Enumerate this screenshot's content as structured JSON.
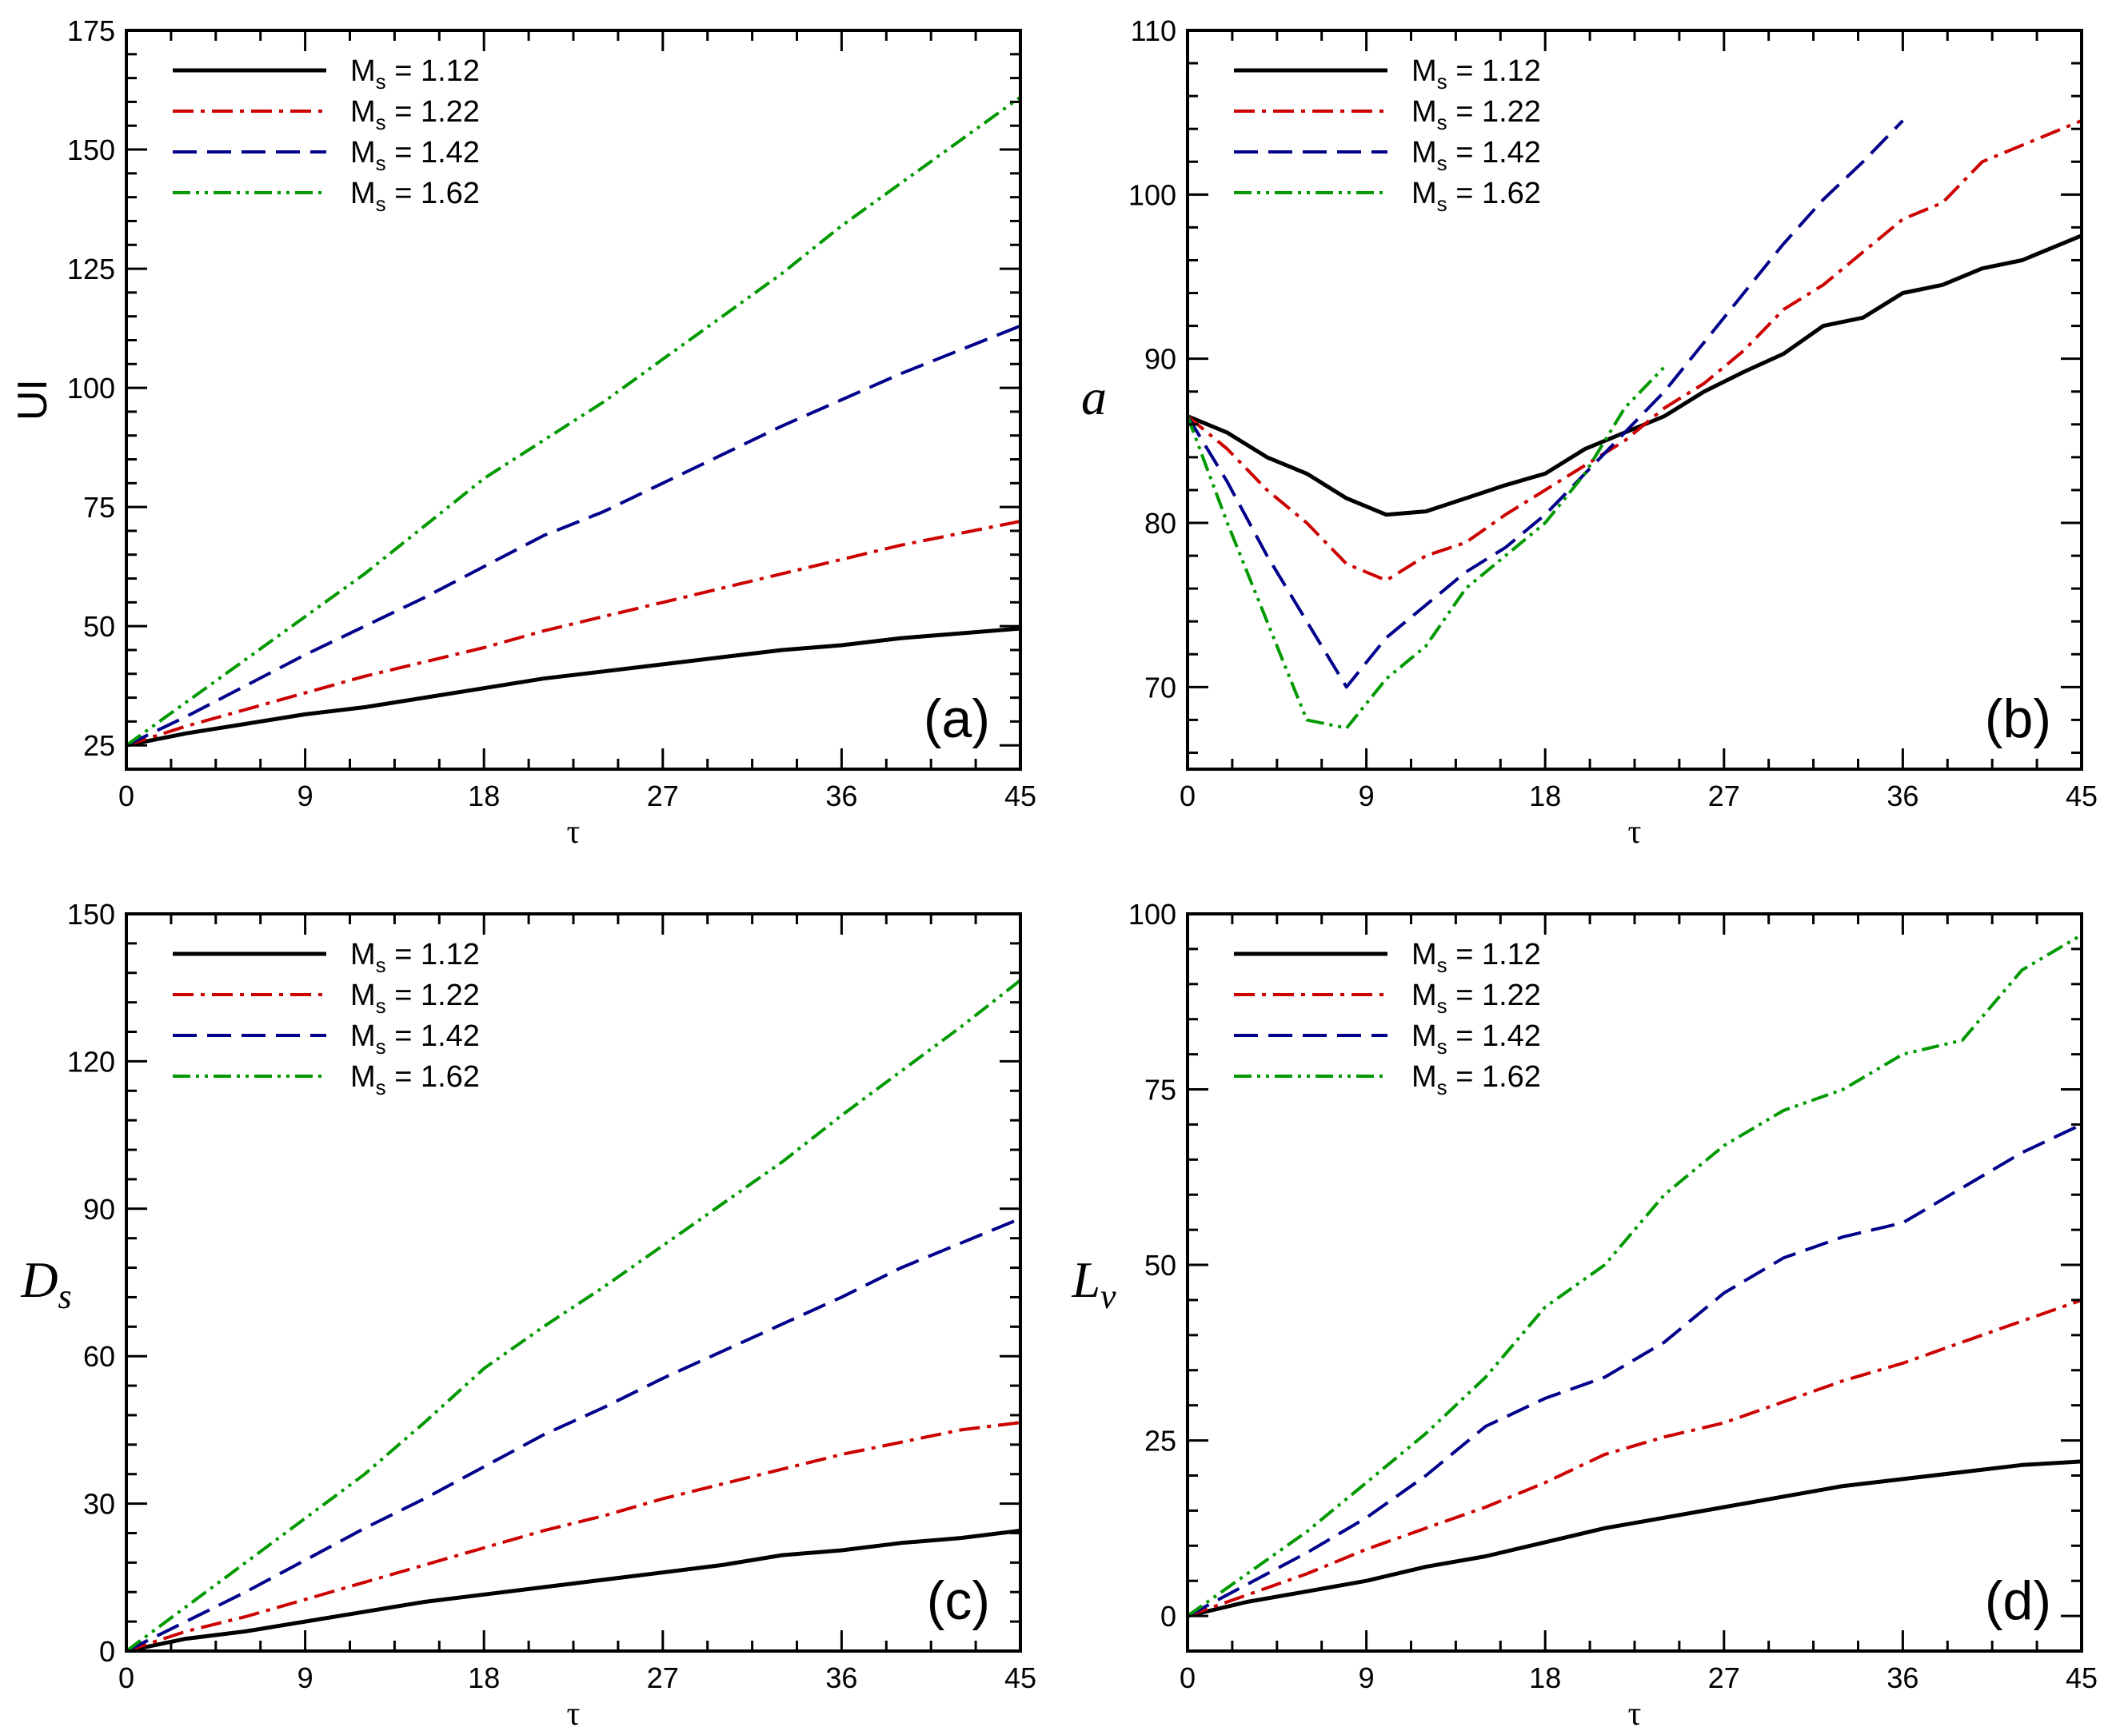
{
  "chart_data": [
    {
      "type": "line",
      "panel_label": "(a)",
      "xlabel": "τ",
      "ylabel": "UI",
      "xlim": [
        0,
        45
      ],
      "ylim": [
        20,
        175
      ],
      "xticks": [
        "0",
        "9",
        "18",
        "27",
        "36",
        "45"
      ],
      "xtick_values": [
        0,
        9,
        18,
        27,
        36,
        45
      ],
      "yticks": [
        "25",
        "50",
        "75",
        "100",
        "125",
        "150",
        "175"
      ],
      "ytick_values": [
        25,
        50,
        75,
        100,
        125,
        150,
        175
      ],
      "legend_position": "top-left",
      "series": [
        {
          "name": "M_s = 1.12",
          "style": "solid",
          "color": "#000000",
          "x": [
            0,
            3,
            6,
            9,
            12,
            15,
            18,
            21,
            24,
            27,
            30,
            33,
            36,
            39,
            42,
            45
          ],
          "y": [
            25,
            27.5,
            29.5,
            31.5,
            33,
            35,
            37,
            39,
            40.5,
            42,
            43.5,
            45,
            46,
            47.5,
            48.5,
            49.5
          ]
        },
        {
          "name": "M_s = 1.22",
          "style": "dashdot",
          "color": "#cc0000",
          "x": [
            0,
            3,
            6,
            9,
            12,
            15,
            18,
            21,
            24,
            27,
            30,
            33,
            36,
            39,
            42,
            45
          ],
          "y": [
            25,
            29,
            32.5,
            36,
            39.5,
            42.5,
            45.5,
            49,
            52,
            55,
            58,
            61,
            64,
            67,
            69.5,
            72
          ]
        },
        {
          "name": "M_s = 1.42",
          "style": "dashed",
          "color": "#00008b",
          "x": [
            0,
            3,
            6,
            9,
            12,
            15,
            18,
            21,
            24,
            27,
            30,
            33,
            36,
            39,
            42,
            45
          ],
          "y": [
            25,
            31,
            37.5,
            44,
            50,
            56,
            62.5,
            69,
            74,
            80,
            86,
            92,
            97.5,
            103,
            108,
            113
          ]
        },
        {
          "name": "M_s = 1.62",
          "style": "dashdotdot",
          "color": "#009900",
          "x": [
            0,
            3,
            6,
            9,
            12,
            15,
            18,
            21,
            24,
            27,
            30,
            33,
            36,
            39,
            42,
            45
          ],
          "y": [
            25,
            34,
            43,
            52,
            61,
            71,
            81,
            89,
            97,
            106,
            115,
            124,
            134,
            143,
            152,
            161
          ]
        }
      ]
    },
    {
      "type": "line",
      "panel_label": "(b)",
      "xlabel": "τ",
      "ylabel": "a",
      "xlim": [
        0,
        45
      ],
      "ylim": [
        65,
        110
      ],
      "xticks": [
        "0",
        "9",
        "18",
        "27",
        "36",
        "45"
      ],
      "xtick_values": [
        0,
        9,
        18,
        27,
        36,
        45
      ],
      "yticks": [
        "70",
        "80",
        "90",
        "100",
        "110"
      ],
      "ytick_values": [
        70,
        80,
        90,
        100,
        110
      ],
      "legend_position": "top-left",
      "series": [
        {
          "name": "M_s = 1.12",
          "style": "solid",
          "color": "#000000",
          "x": [
            0,
            2,
            4,
            6,
            8,
            10,
            12,
            14,
            16,
            18,
            20,
            22,
            24,
            26,
            28,
            30,
            32,
            34,
            36,
            38,
            40,
            42,
            45
          ],
          "y": [
            86.5,
            85.5,
            84,
            83,
            81.5,
            80.5,
            80.7,
            81.5,
            82.3,
            83,
            84.5,
            85.5,
            86.5,
            88,
            89.2,
            90.3,
            92,
            92.5,
            94,
            94.5,
            95.5,
            96,
            97.5
          ]
        },
        {
          "name": "M_s = 1.22",
          "style": "dashdot",
          "color": "#cc0000",
          "x": [
            0,
            2,
            4,
            6,
            8,
            10,
            12,
            14,
            16,
            18,
            20,
            22,
            24,
            26,
            28,
            30,
            32,
            34,
            36,
            38,
            40,
            42,
            45
          ],
          "y": [
            86.5,
            84.5,
            82,
            80,
            77.5,
            76.5,
            78,
            78.8,
            80.5,
            82,
            83.5,
            85,
            87,
            88.5,
            90.5,
            93,
            94.5,
            96.5,
            98.5,
            99.5,
            102,
            103,
            104.5
          ]
        },
        {
          "name": "M_s = 1.42",
          "style": "dashed",
          "color": "#00008b",
          "x": [
            0,
            2,
            4,
            6,
            8,
            10,
            12,
            14,
            16,
            18,
            20,
            22,
            24,
            26,
            28,
            30,
            32,
            34,
            36
          ],
          "y": [
            86.5,
            82.5,
            78,
            74,
            70,
            73,
            75,
            77,
            78.5,
            80.5,
            83,
            85.5,
            88,
            91,
            94,
            97,
            99.7,
            102,
            104.5
          ]
        },
        {
          "name": "M_s = 1.62",
          "style": "dashdotdot",
          "color": "#009900",
          "x": [
            0,
            2,
            4,
            6,
            8,
            10,
            12,
            14,
            16,
            18,
            20,
            22,
            24
          ],
          "y": [
            86.5,
            80,
            74,
            68,
            67.5,
            70.5,
            72.5,
            76,
            78,
            80,
            83,
            87,
            89.5
          ]
        }
      ]
    },
    {
      "type": "line",
      "panel_label": "(c)",
      "xlabel": "τ",
      "ylabel": "D_s",
      "xlim": [
        0,
        45
      ],
      "ylim": [
        0,
        150
      ],
      "xticks": [
        "0",
        "9",
        "18",
        "27",
        "36",
        "45"
      ],
      "xtick_values": [
        0,
        9,
        18,
        27,
        36,
        45
      ],
      "yticks": [
        "0",
        "30",
        "60",
        "90",
        "120",
        "150"
      ],
      "ytick_values": [
        0,
        30,
        60,
        90,
        120,
        150
      ],
      "legend_position": "top-left",
      "series": [
        {
          "name": "M_s = 1.12",
          "style": "solid",
          "color": "#000000",
          "x": [
            0,
            3,
            6,
            9,
            12,
            15,
            18,
            21,
            24,
            27,
            30,
            33,
            36,
            39,
            42,
            45
          ],
          "y": [
            0,
            2.5,
            4,
            6,
            8,
            10,
            11.5,
            13,
            14.5,
            16,
            17.5,
            19.5,
            20.5,
            22,
            23,
            24.5
          ]
        },
        {
          "name": "M_s = 1.22",
          "style": "dashdot",
          "color": "#cc0000",
          "x": [
            0,
            3,
            6,
            9,
            12,
            15,
            18,
            21,
            24,
            27,
            30,
            33,
            36,
            39,
            42,
            45
          ],
          "y": [
            0,
            4,
            7,
            10.5,
            14,
            17.5,
            21,
            24.5,
            27.5,
            31,
            34,
            37,
            40,
            42.5,
            45,
            46.5
          ]
        },
        {
          "name": "M_s = 1.42",
          "style": "dashed",
          "color": "#00008b",
          "x": [
            0,
            3,
            6,
            9,
            12,
            15,
            18,
            21,
            24,
            27,
            30,
            33,
            36,
            39,
            42,
            45
          ],
          "y": [
            0,
            6,
            12,
            18.5,
            25,
            31,
            37.5,
            44,
            49.5,
            55.5,
            61,
            66.5,
            72,
            78,
            83,
            88
          ]
        },
        {
          "name": "M_s = 1.62",
          "style": "dashdotdot",
          "color": "#009900",
          "x": [
            0,
            3,
            6,
            9,
            12,
            15,
            18,
            21,
            24,
            27,
            30,
            33,
            36,
            39,
            42,
            45
          ],
          "y": [
            0,
            9,
            18,
            27,
            36,
            46.5,
            57.5,
            66,
            74,
            82.5,
            91,
            99.5,
            109,
            118,
            127,
            136.5
          ]
        }
      ]
    },
    {
      "type": "line",
      "panel_label": "(d)",
      "xlabel": "τ",
      "ylabel": "L_v",
      "xlim": [
        0,
        45
      ],
      "ylim": [
        -5,
        100
      ],
      "xticks": [
        "0",
        "9",
        "18",
        "27",
        "36",
        "45"
      ],
      "xtick_values": [
        0,
        9,
        18,
        27,
        36,
        45
      ],
      "yticks": [
        "0",
        "25",
        "50",
        "75",
        "100"
      ],
      "ytick_values": [
        0,
        25,
        50,
        75,
        100
      ],
      "legend_position": "top-left",
      "series": [
        {
          "name": "M_s = 1.12",
          "style": "solid",
          "color": "#000000",
          "x": [
            0,
            3,
            6,
            9,
            12,
            15,
            18,
            21,
            24,
            27,
            30,
            33,
            36,
            39,
            42,
            45
          ],
          "y": [
            0,
            2,
            3.5,
            5,
            7,
            8.5,
            10.5,
            12.5,
            14,
            15.5,
            17,
            18.5,
            19.5,
            20.5,
            21.5,
            22
          ]
        },
        {
          "name": "M_s = 1.22",
          "style": "dashdot",
          "color": "#cc0000",
          "x": [
            0,
            3,
            6,
            9,
            12,
            15,
            18,
            21,
            24,
            27,
            30,
            33,
            36,
            39,
            42,
            45
          ],
          "y": [
            0,
            3,
            6,
            9.5,
            12.5,
            15.5,
            19,
            23,
            25.5,
            27.5,
            30.5,
            33.5,
            36,
            39,
            42,
            45
          ]
        },
        {
          "name": "M_s = 1.42",
          "style": "dashed",
          "color": "#00008b",
          "x": [
            0,
            3,
            6,
            9,
            12,
            15,
            18,
            21,
            24,
            27,
            30,
            33,
            36,
            39,
            42,
            45
          ],
          "y": [
            0,
            4.5,
            9,
            14,
            20,
            27,
            31,
            34,
            39,
            46,
            51,
            54,
            56,
            61,
            66,
            70
          ]
        },
        {
          "name": "M_s = 1.62",
          "style": "dashdotdot",
          "color": "#009900",
          "x": [
            0,
            3,
            6,
            9,
            12,
            15,
            18,
            21,
            24,
            27,
            30,
            33,
            36,
            39,
            42,
            45
          ],
          "y": [
            0,
            6,
            12,
            19,
            26,
            34,
            44,
            50,
            60,
            67,
            72,
            75,
            80,
            82,
            92,
            97
          ]
        }
      ]
    }
  ]
}
